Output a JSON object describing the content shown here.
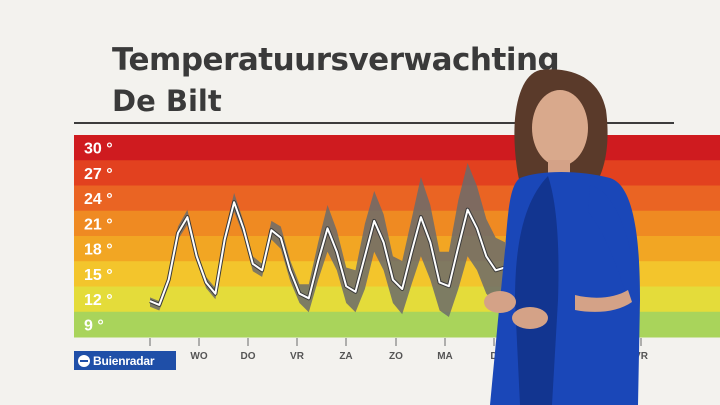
{
  "header": {
    "title": "Temperatuursverwachting",
    "subtitle": "De Bilt"
  },
  "brand": {
    "logo_text": "Buienradar"
  },
  "colors": {
    "band_30": "#cf1b1f",
    "band_27": "#e2411f",
    "band_24": "#ea6423",
    "band_21": "#ef8a22",
    "band_18": "#f2a623",
    "band_15": "#f3c52c",
    "band_12": "#e4dc3a",
    "band_9": "#a9d45b",
    "mean_line": "#ffffff",
    "spread": "#6b6b6b",
    "brand": "#1f4fa8"
  },
  "chart_data": {
    "type": "area",
    "title": "Temperatuursverwachting",
    "subtitle": "De Bilt",
    "y_ticks": [
      "30 °",
      "27 °",
      "24 °",
      "21 °",
      "18 °",
      "15 °",
      "12 °",
      "9 °"
    ],
    "ylim": [
      9,
      30
    ],
    "x_tick_labels": [
      "WO",
      "DO",
      "VR",
      "ZA",
      "ZO",
      "MA",
      "D",
      "VR"
    ],
    "series": [
      {
        "role": "mean",
        "x": [
          0,
          0.5,
          1,
          1.5,
          2,
          2.5,
          3,
          3.5,
          4,
          4.5,
          5,
          5.5,
          6,
          6.5,
          7,
          7.5,
          8,
          8.5,
          9,
          9.5,
          10,
          10.5,
          11,
          11.5,
          12,
          12.5,
          13,
          13.5,
          14,
          14.5,
          15,
          15.5,
          16,
          16.5,
          17,
          17.5,
          18,
          18.5,
          19
        ],
        "values": [
          12.2,
          11.8,
          14.5,
          19.5,
          21.2,
          17.0,
          14.2,
          13.0,
          18.8,
          22.8,
          20.0,
          16.2,
          15.5,
          19.8,
          19.0,
          15.5,
          13.0,
          12.5,
          16.5,
          20.0,
          17.5,
          13.8,
          13.2,
          17.0,
          20.8,
          18.5,
          14.5,
          13.5,
          17.5,
          21.2,
          18.5,
          14.2,
          13.8,
          18.0,
          22.0,
          20.0,
          17.0,
          15.5,
          15.8
        ]
      },
      {
        "role": "spread_upper",
        "x": [
          0,
          0.5,
          1,
          1.5,
          2,
          2.5,
          3,
          3.5,
          4,
          4.5,
          5,
          5.5,
          6,
          6.5,
          7,
          7.5,
          8,
          8.5,
          9,
          9.5,
          10,
          10.5,
          11,
          11.5,
          12,
          12.5,
          13,
          13.5,
          14,
          14.5,
          15,
          15.5,
          16,
          16.5,
          17,
          17.5,
          18,
          18.5,
          19
        ],
        "values": [
          12.6,
          12.2,
          15.0,
          20.2,
          22.0,
          17.6,
          14.8,
          13.6,
          19.5,
          23.8,
          20.8,
          17.0,
          16.2,
          20.8,
          20.2,
          16.6,
          14.0,
          14.0,
          18.5,
          22.5,
          19.8,
          15.8,
          15.5,
          20.5,
          24.0,
          21.5,
          17.0,
          16.5,
          21.0,
          25.5,
          22.5,
          17.5,
          17.5,
          23.0,
          27.0,
          24.5,
          21.0,
          19.0,
          18.5
        ]
      },
      {
        "role": "spread_lower",
        "x": [
          0,
          0.5,
          1,
          1.5,
          2,
          2.5,
          3,
          3.5,
          4,
          4.5,
          5,
          5.5,
          6,
          6.5,
          7,
          7.5,
          8,
          8.5,
          9,
          9.5,
          10,
          10.5,
          11,
          11.5,
          12,
          12.5,
          13,
          13.5,
          14,
          14.5,
          15,
          15.5,
          16,
          16.5,
          17,
          17.5,
          18,
          18.5,
          19
        ],
        "values": [
          11.6,
          11.2,
          13.8,
          18.8,
          20.4,
          16.4,
          13.6,
          12.4,
          18.0,
          21.8,
          19.2,
          15.4,
          14.8,
          18.8,
          17.8,
          14.4,
          12.0,
          11.0,
          14.5,
          17.5,
          15.5,
          12.0,
          11.0,
          13.5,
          17.5,
          15.5,
          12.0,
          10.8,
          14.0,
          17.0,
          14.5,
          11.2,
          10.5,
          13.5,
          17.0,
          15.5,
          13.0,
          12.0,
          13.0
        ]
      }
    ],
    "grid": false,
    "legend": "none"
  }
}
